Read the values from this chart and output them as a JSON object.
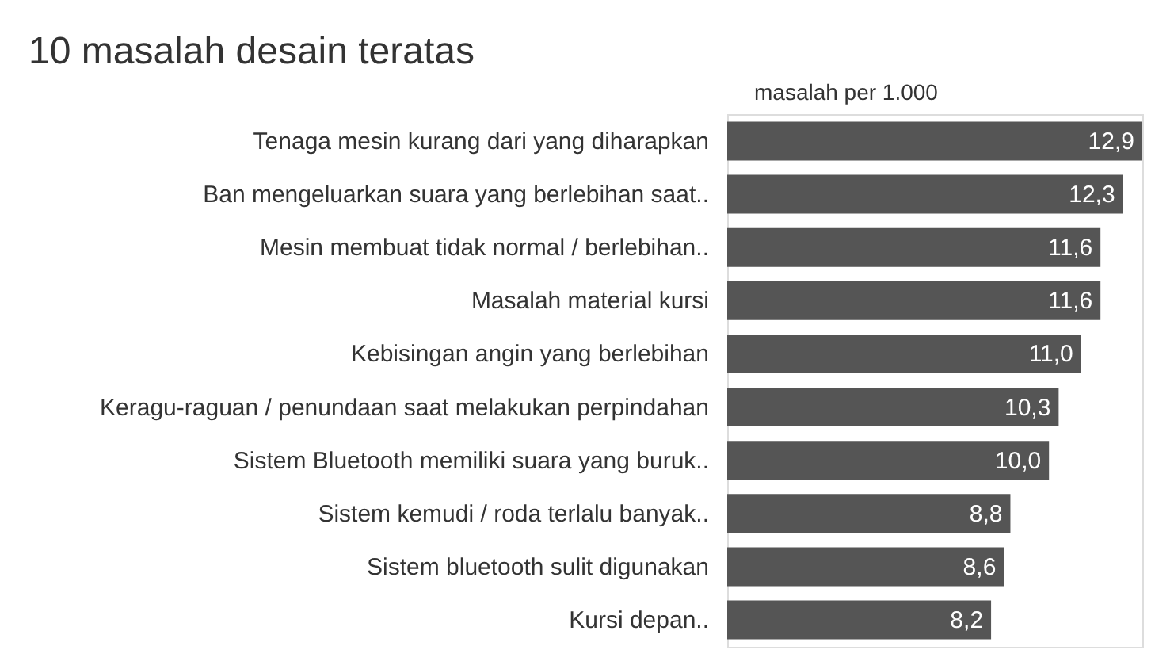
{
  "chart_data": {
    "type": "bar",
    "orientation": "horizontal",
    "title": "10 masalah desain teratas",
    "xlabel": "masalah per 1.000",
    "categories": [
      "Tenaga mesin kurang dari yang diharapkan",
      "Ban mengeluarkan suara yang berlebihan saat..",
      "Mesin membuat tidak normal / berlebihan..",
      "Masalah material kursi",
      "Kebisingan angin yang berlebihan",
      "Keragu-raguan / penundaan saat melakukan perpindahan",
      "Sistem Bluetooth memiliki suara yang buruk..",
      "Sistem kemudi / roda terlalu banyak..",
      "Sistem bluetooth sulit digunakan",
      "Kursi depan.."
    ],
    "values": [
      12.9,
      12.3,
      11.6,
      11.6,
      11.0,
      10.3,
      10.0,
      8.8,
      8.6,
      8.2
    ],
    "value_labels": [
      "12,9",
      "12,3",
      "11,6",
      "11,6",
      "11,0",
      "10,3",
      "10,0",
      "8,8",
      "8,6",
      "8,2"
    ],
    "color": "#555555"
  }
}
